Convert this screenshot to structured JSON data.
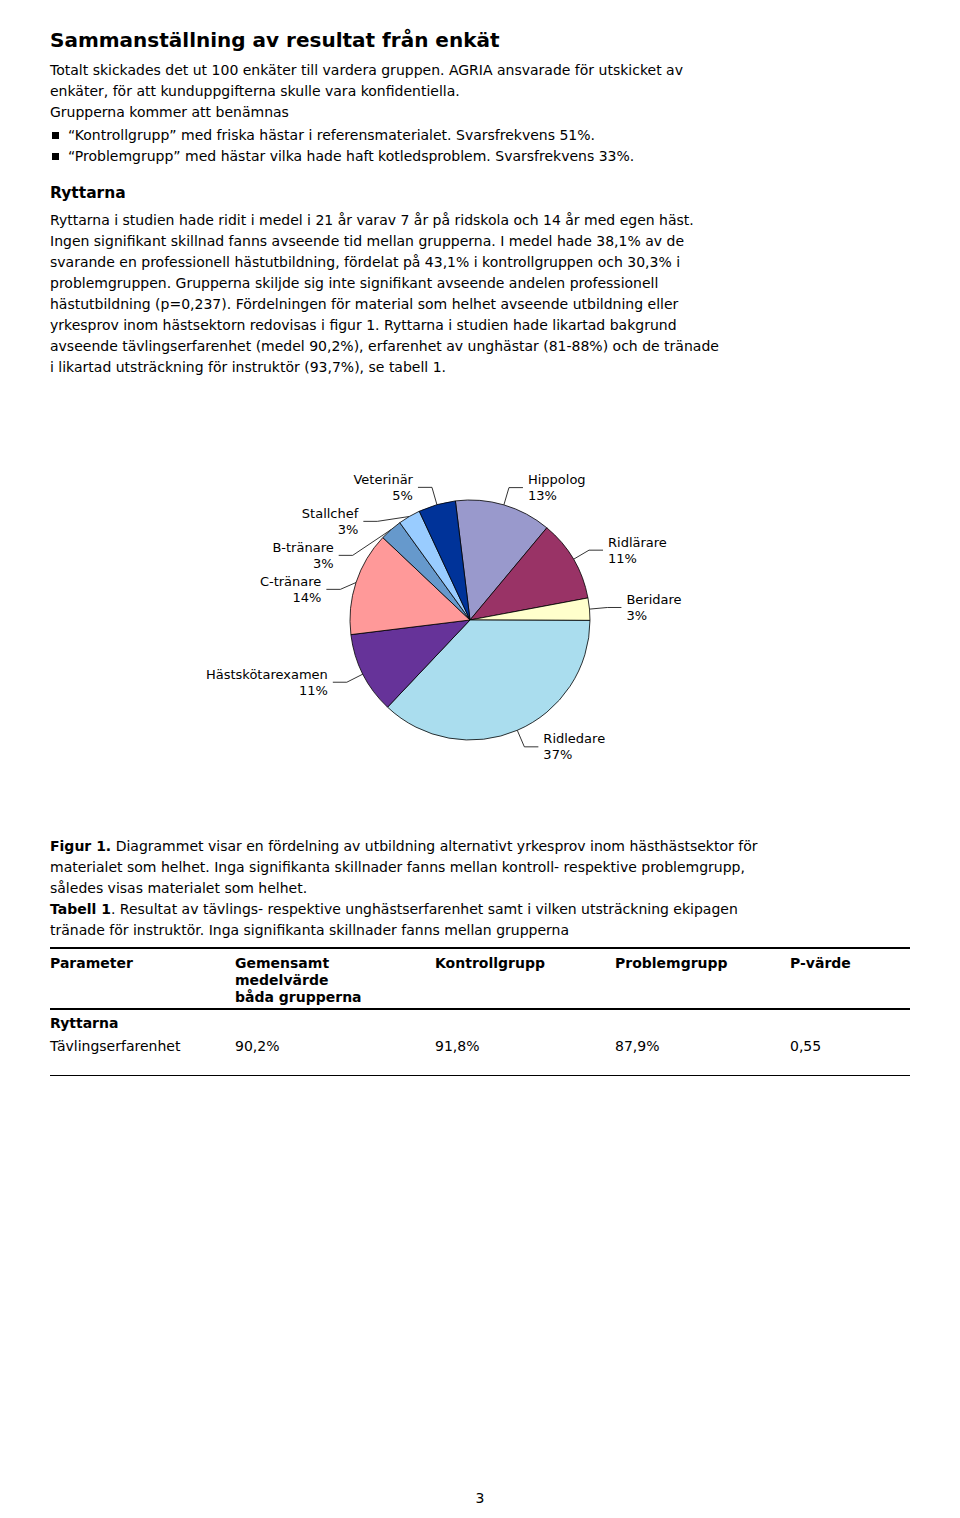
{
  "page": {
    "title": "Sammanställning av resultat från enkät",
    "intro_lines": [
      "Totalt skickades det ut 100 enkäter till vardera gruppen. AGRIA ansvarade för utskicket av",
      "enkäter, för att kunduppgifterna skulle vara konfidentiella.",
      "Grupperna kommer att benämnas"
    ],
    "bullets": [
      "“Kontrollgrupp” med friska hästar i referensmaterialet. Svarsfrekvens 51%.",
      "“Problemgrupp” med hästar vilka hade haft kotledsproblem. Svarsfrekvens 33%."
    ],
    "section_title": "Ryttarna",
    "body_lines": [
      "Ryttarna i studien hade ridit i medel i 21 år varav 7 år på ridskola och 14 år med egen häst.",
      "Ingen signifikant skillnad fanns avseende tid mellan grupperna. I medel hade 38,1% av de",
      "svarande en professionell hästutbildning, fördelat på 43,1% i kontrollgruppen och 30,3% i",
      "problemgruppen. Grupperna skiljde sig inte signifikant avseende andelen professionell",
      "hästutbildning (p=0,237). Fördelningen för material som helhet avseende utbildning eller",
      "yrkesprov inom hästsektorn redovisas i figur 1. Ryttarna i studien hade likartad bakgrund",
      "avseende tävlingserfarenhet (medel 90,2%), erfarenhet av unghästar (81-88%) och de tränade",
      "i likartad utsträckning för instruktör (93,7%), se tabell 1."
    ],
    "figure_caption": {
      "bold": "Figur 1.",
      "lines": [
        " Diagrammet visar en fördelning av utbildning alternativt yrkesprov inom hästhästsektor för",
        "materialet som helhet. Inga signifikanta skillnader fanns mellan kontroll- respektive problemgrupp,",
        "således visas materialet som helhet."
      ]
    },
    "table_caption": {
      "bold": "Tabell 1",
      "lines": [
        ". Resultat av tävlings- respektive unghästserfarenhet samt i vilken utsträckning ekipagen",
        "tränade för instruktör. Inga signifikanta skillnader fanns mellan grupperna"
      ]
    },
    "table": {
      "header": [
        "Parameter",
        "Gemensamt\nmedelvärde\nbåda grupperna",
        "Kontrollgrupp",
        "Problemgrupp",
        "P-värde"
      ],
      "section": "Ryttarna",
      "rows": [
        [
          "Tävlingserfarenhet",
          "90,2%",
          "91,8%",
          "87,9%",
          "0,55"
        ]
      ]
    },
    "page_number": "3"
  },
  "chart_data": {
    "type": "pie",
    "categories": [
      "Hippolog",
      "Ridlärare",
      "Beridare",
      "Ridledare",
      "Hästskötarexamen",
      "C-tränare",
      "B-tränare",
      "Stallchef",
      "Veterinär"
    ],
    "values": [
      13,
      11,
      3,
      37,
      11,
      14,
      3,
      3,
      5
    ],
    "value_labels": [
      "13%",
      "11%",
      "3%",
      "37%",
      "11%",
      "14%",
      "3%",
      "3%",
      "5%"
    ],
    "colors": [
      "#9999cc",
      "#993366",
      "#ffffcc",
      "#aaddee",
      "#663399",
      "#ff9999",
      "#6699cc",
      "#99ccff",
      "#003399"
    ],
    "data_labels": true,
    "legend": false
  }
}
